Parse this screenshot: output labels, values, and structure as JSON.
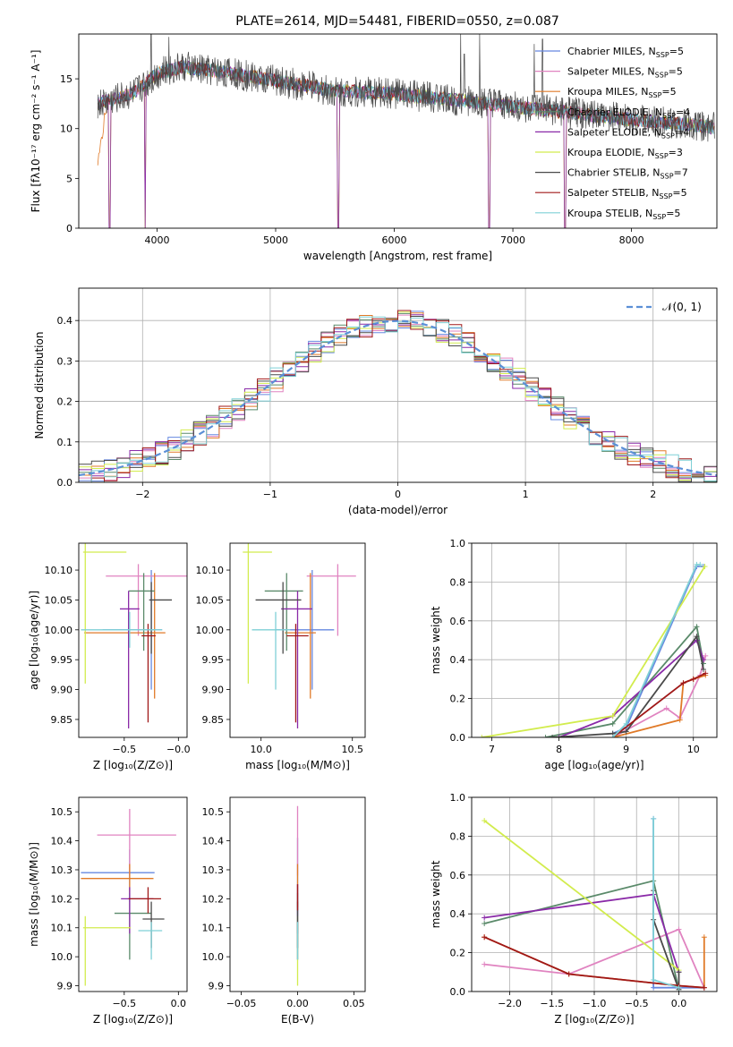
{
  "figure_title": "PLATE=2614, MJD=54481, FIBERID=0550, z=0.087",
  "colors": [
    "#6688e0",
    "#e083c0",
    "#e07a28",
    "#5a8a6a",
    "#8a2aa8",
    "#d2ec4e",
    "#4a4a4a",
    "#a01818",
    "#7fd0d6"
  ],
  "chart_data": [
    {
      "id": "spectrum",
      "type": "line",
      "xlabel": "wavelength [Angstrom, rest frame]",
      "ylabel": "Flux [fλ10⁻¹⁷ erg cm⁻² s⁻¹ A⁻¹]",
      "xlim": [
        3340,
        8720
      ],
      "ylim": [
        0,
        19.5
      ],
      "xticks": [
        "4000",
        "5000",
        "6000",
        "7000",
        "8000"
      ],
      "yticks": [
        "0",
        "5",
        "10",
        "15"
      ],
      "legend_position": "top-right",
      "series": [
        {
          "name": "Chabrier MILES, Nₛₛₚ=5",
          "label_main": "Chabrier MILES, N",
          "label_sub": "SSP",
          "label_tail": "=5"
        },
        {
          "name": "Salpeter MILES, Nₛₛₚ=5",
          "label_main": "Salpeter MILES, N",
          "label_sub": "SSP",
          "label_tail": "=5"
        },
        {
          "name": "Kroupa MILES, Nₛₛₚ=5",
          "label_main": "Kroupa MILES, N",
          "label_sub": "SSP",
          "label_tail": "=5"
        },
        {
          "name": "Chabrier ELODIE, Nₛₛₚ=4",
          "label_main": "Chabrier ELODIE, N",
          "label_sub": "SSP",
          "label_tail": "=4"
        },
        {
          "name": "Salpeter ELODIE, Nₛₛₚ=4",
          "label_main": "Salpeter ELODIE, N",
          "label_sub": "SSP",
          "label_tail": "=4"
        },
        {
          "name": "Kroupa ELODIE, Nₛₛₚ=3",
          "label_main": "Kroupa ELODIE, N",
          "label_sub": "SSP",
          "label_tail": "=3"
        },
        {
          "name": "Chabrier STELIB, Nₛₛₚ=7",
          "label_main": "Chabrier STELIB, N",
          "label_sub": "SSP",
          "label_tail": "=7"
        },
        {
          "name": "Salpeter STELIB, Nₛₛₚ=5",
          "label_main": "Salpeter STELIB, N",
          "label_sub": "SSP",
          "label_tail": "=5"
        },
        {
          "name": "Kroupa STELIB, Nₛₛₚ=5",
          "label_main": "Kroupa STELIB, N",
          "label_sub": "SSP",
          "label_tail": "=5"
        }
      ],
      "continuum": [
        [
          3500,
          12.5
        ],
        [
          3800,
          13.6
        ],
        [
          4000,
          15.5
        ],
        [
          4200,
          16.2
        ],
        [
          4500,
          15.8
        ],
        [
          5000,
          14.8
        ],
        [
          5500,
          13.8
        ],
        [
          6000,
          13.5
        ],
        [
          6500,
          12.9
        ],
        [
          7000,
          12.2
        ],
        [
          7500,
          11.6
        ],
        [
          8000,
          10.9
        ],
        [
          8500,
          10.4
        ],
        [
          8700,
          10.1
        ]
      ],
      "observed_spikes": [
        [
          3950,
          19.5
        ],
        [
          4100,
          19.2
        ],
        [
          6560,
          19.5
        ],
        [
          6590,
          17.5
        ],
        [
          6720,
          19.5
        ],
        [
          7180,
          18.5
        ],
        [
          7250,
          19.0
        ]
      ],
      "model_dips": [
        [
          3600,
          0
        ],
        [
          3900,
          0
        ],
        [
          5530,
          0
        ],
        [
          6800,
          0
        ],
        [
          7440,
          0
        ]
      ]
    },
    {
      "id": "residuals",
      "type": "histogram",
      "xlabel": "(data-model)/error",
      "ylabel": "Normed distribution",
      "xlim": [
        -2.5,
        2.5
      ],
      "ylim": [
        0,
        0.48
      ],
      "xticks": [
        "−2",
        "−1",
        "0",
        "1",
        "2"
      ],
      "yticks": [
        "0.0",
        "0.1",
        "0.2",
        "0.3",
        "0.4"
      ],
      "bin_width": 0.1,
      "reference_curve": "𝒩(0, 1)",
      "legend_position": "top-right",
      "bin_start": -2.5
    },
    {
      "id": "age_vs_Z",
      "type": "scatter",
      "xlabel": "Z [log₁₀(Z/Z⊙)]",
      "ylabel": "age  [log₁₀(age/yr)]",
      "xlim": [
        -0.92,
        0.08
      ],
      "ylim": [
        9.82,
        10.145
      ],
      "xticks": [
        "−0.5",
        "−0.0"
      ],
      "yticks": [
        "9.85",
        "9.90",
        "9.95",
        "10.00",
        "10.05",
        "10.10"
      ],
      "points": [
        {
          "x": -0.25,
          "y": 10.0,
          "xerr": [
            0.45,
            0.1
          ],
          "yerr": [
            0.1,
            0.1
          ]
        },
        {
          "x": -0.37,
          "y": 10.09,
          "xerr": [
            0.3,
            0.45
          ],
          "yerr": [
            0.1,
            0.02
          ]
        },
        {
          "x": -0.22,
          "y": 9.995,
          "xerr": [
            0.65,
            0.1
          ],
          "yerr": [
            0.11,
            0.1
          ]
        },
        {
          "x": -0.32,
          "y": 10.065,
          "xerr": [
            0.14,
            0.1
          ],
          "yerr": [
            0.1,
            0.03
          ]
        },
        {
          "x": -0.46,
          "y": 10.035,
          "xerr": [
            0.08,
            0.1
          ],
          "yerr": [
            0.2,
            0.03
          ]
        },
        {
          "x": -0.86,
          "y": 10.13,
          "xerr": [
            0.02,
            0.38
          ],
          "yerr": [
            0.22,
            0.02
          ]
        },
        {
          "x": -0.25,
          "y": 10.05,
          "xerr": [
            0.02,
            0.19
          ],
          "yerr": [
            0.09,
            0.03
          ]
        },
        {
          "x": -0.28,
          "y": 9.99,
          "xerr": [
            0.06,
            0.07
          ],
          "yerr": [
            0.145,
            0.02
          ]
        },
        {
          "x": -0.45,
          "y": 10.0,
          "xerr": [
            0.45,
            0.3
          ],
          "yerr": [
            0.03,
            0.03
          ]
        }
      ]
    },
    {
      "id": "age_vs_mass",
      "type": "scatter",
      "xlabel": "mass [log₁₀(M/M⊙)]",
      "ylabel": "",
      "xlim": [
        9.83,
        10.57
      ],
      "ylim": [
        9.82,
        10.145
      ],
      "xticks": [
        "10.0",
        "10.5"
      ],
      "yticks": [
        "9.85",
        "9.90",
        "9.95",
        "10.00",
        "10.05",
        "10.10"
      ],
      "points": [
        {
          "x": 10.28,
          "y": 10.0,
          "xerr": [
            0.2,
            0.12
          ],
          "yerr": [
            0.1,
            0.1
          ]
        },
        {
          "x": 10.42,
          "y": 10.09,
          "xerr": [
            0.17,
            0.1
          ],
          "yerr": [
            0.1,
            0.02
          ]
        },
        {
          "x": 10.27,
          "y": 9.995,
          "xerr": [
            0.14,
            0.03
          ],
          "yerr": [
            0.11,
            0.1
          ]
        },
        {
          "x": 10.14,
          "y": 10.065,
          "xerr": [
            0.12,
            0.09
          ],
          "yerr": [
            0.1,
            0.03
          ]
        },
        {
          "x": 10.2,
          "y": 10.035,
          "xerr": [
            0.09,
            0.08
          ],
          "yerr": [
            0.2,
            0.03
          ]
        },
        {
          "x": 9.93,
          "y": 10.13,
          "xerr": [
            0.03,
            0.13
          ],
          "yerr": [
            0.22,
            0.02
          ]
        },
        {
          "x": 10.12,
          "y": 10.05,
          "xerr": [
            0.15,
            0.1
          ],
          "yerr": [
            0.09,
            0.03
          ]
        },
        {
          "x": 10.19,
          "y": 9.99,
          "xerr": [
            0.05,
            0.07
          ],
          "yerr": [
            0.145,
            0.02
          ]
        },
        {
          "x": 10.08,
          "y": 10.0,
          "xerr": [
            0.13,
            0.08
          ],
          "yerr": [
            0.1,
            0.03
          ]
        }
      ]
    },
    {
      "id": "weight_vs_age",
      "type": "line",
      "xlabel": "age  [log₁₀(age/yr)]",
      "ylabel": "mass weight",
      "xlim": [
        6.7,
        10.35
      ],
      "ylim": [
        0,
        1.0
      ],
      "xticks": [
        "7",
        "8",
        "9",
        "10"
      ],
      "yticks": [
        "0.0",
        "0.2",
        "0.4",
        "0.6",
        "0.8",
        "1.0"
      ],
      "series": [
        {
          "points": [
            [
              8.8,
              0.02
            ],
            [
              9.0,
              0.05
            ],
            [
              10.05,
              0.88
            ],
            [
              10.15,
              0.88
            ]
          ]
        },
        {
          "points": [
            [
              8.8,
              0.0
            ],
            [
              9.6,
              0.15
            ],
            [
              9.8,
              0.1
            ],
            [
              10.1,
              0.32
            ],
            [
              10.18,
              0.42
            ]
          ]
        },
        {
          "points": [
            [
              8.8,
              0.0
            ],
            [
              9.8,
              0.09
            ],
            [
              9.85,
              0.28
            ],
            [
              10.0,
              0.3
            ],
            [
              10.18,
              0.32
            ]
          ]
        },
        {
          "points": [
            [
              7.8,
              0.0
            ],
            [
              8.8,
              0.07
            ],
            [
              10.05,
              0.57
            ],
            [
              10.15,
              0.38
            ]
          ]
        },
        {
          "points": [
            [
              8.0,
              0.0
            ],
            [
              8.8,
              0.11
            ],
            [
              10.05,
              0.5
            ],
            [
              10.15,
              0.4
            ]
          ]
        },
        {
          "points": [
            [
              6.85,
              0.0
            ],
            [
              8.8,
              0.11
            ],
            [
              10.17,
              0.88
            ]
          ]
        },
        {
          "points": [
            [
              7.9,
              0.0
            ],
            [
              8.8,
              0.02
            ],
            [
              9.0,
              0.03
            ],
            [
              10.05,
              0.52
            ],
            [
              10.15,
              0.35
            ]
          ]
        },
        {
          "points": [
            [
              8.8,
              0.0
            ],
            [
              9.85,
              0.28
            ],
            [
              10.0,
              0.3
            ],
            [
              10.18,
              0.33
            ]
          ]
        },
        {
          "points": [
            [
              8.8,
              0.0
            ],
            [
              9.0,
              0.07
            ],
            [
              10.05,
              0.89
            ],
            [
              10.1,
              0.89
            ]
          ]
        }
      ]
    },
    {
      "id": "mass_vs_Z",
      "type": "scatter",
      "xlabel": "Z [log₁₀(Z/Z⊙)]",
      "ylabel": "mass [log₁₀(M/M⊙)]",
      "xlim": [
        -0.92,
        0.08
      ],
      "ylim": [
        9.88,
        10.55
      ],
      "xticks": [
        "−0.5",
        "0.0"
      ],
      "yticks": [
        "9.9",
        "10.0",
        "10.1",
        "10.2",
        "10.3",
        "10.4",
        "10.5"
      ],
      "points": [
        {
          "x": -0.45,
          "y": 10.29,
          "xerr": [
            0.45,
            0.23
          ],
          "yerr": [
            0.1,
            0.08
          ]
        },
        {
          "x": -0.45,
          "y": 10.42,
          "xerr": [
            0.3,
            0.43
          ],
          "yerr": [
            0.14,
            0.09
          ]
        },
        {
          "x": -0.45,
          "y": 10.27,
          "xerr": [
            0.45,
            0.22
          ],
          "yerr": [
            0.05,
            0.05
          ]
        },
        {
          "x": -0.45,
          "y": 10.15,
          "xerr": [
            0.14,
            0.2
          ],
          "yerr": [
            0.16,
            0.07
          ]
        },
        {
          "x": -0.45,
          "y": 10.2,
          "xerr": [
            0.08,
            0.22
          ],
          "yerr": [
            0.12,
            0.04
          ]
        },
        {
          "x": -0.86,
          "y": 10.1,
          "xerr": [
            0.02,
            0.42
          ],
          "yerr": [
            0.2,
            0.04
          ]
        },
        {
          "x": -0.25,
          "y": 10.13,
          "xerr": [
            0.08,
            0.12
          ],
          "yerr": [
            0.1,
            0.06
          ]
        },
        {
          "x": -0.28,
          "y": 10.2,
          "xerr": [
            0.18,
            0.12
          ],
          "yerr": [
            0.05,
            0.04
          ]
        },
        {
          "x": -0.25,
          "y": 10.09,
          "xerr": [
            0.12,
            0.1
          ],
          "yerr": [
            0.1,
            0.03
          ]
        }
      ]
    },
    {
      "id": "mass_vs_ebv",
      "type": "scatter",
      "xlabel": "E(B-V)",
      "ylabel": "",
      "xlim": [
        -0.06,
        0.06
      ],
      "ylim": [
        9.88,
        10.55
      ],
      "xticks": [
        "−0.05",
        "0.00",
        "0.05"
      ],
      "yticks": [
        "9.9",
        "10.0",
        "10.1",
        "10.2",
        "10.3",
        "10.4",
        "10.5"
      ],
      "points": [
        {
          "x": 0.0,
          "y": 10.29,
          "yerr": [
            0.3,
            0.12
          ]
        },
        {
          "x": 0.0,
          "y": 10.42,
          "yerr": [
            0.14,
            0.1
          ]
        },
        {
          "x": 0.0,
          "y": 10.27,
          "yerr": [
            0.1,
            0.05
          ]
        },
        {
          "x": 0.0,
          "y": 10.15,
          "yerr": [
            0.16,
            0.07
          ]
        },
        {
          "x": 0.0,
          "y": 10.2,
          "yerr": [
            0.12,
            0.05
          ]
        },
        {
          "x": 0.0,
          "y": 10.1,
          "yerr": [
            0.2,
            0.04
          ]
        },
        {
          "x": 0.0,
          "y": 10.13,
          "yerr": [
            0.1,
            0.06
          ]
        },
        {
          "x": 0.0,
          "y": 10.2,
          "yerr": [
            0.04,
            0.05
          ]
        },
        {
          "x": 0.0,
          "y": 10.09,
          "yerr": [
            0.1,
            0.03
          ]
        }
      ]
    },
    {
      "id": "weight_vs_Z",
      "type": "line",
      "xlabel": "Z [log₁₀(Z/Z⊙)]",
      "ylabel": "mass weight",
      "xlim": [
        -2.45,
        0.45
      ],
      "ylim": [
        0,
        1.0
      ],
      "xticks": [
        "−2.0",
        "−1.5",
        "−1.0",
        "−0.5",
        "0.0"
      ],
      "yticks": [
        "0.0",
        "0.2",
        "0.4",
        "0.6",
        "0.8",
        "1.0"
      ],
      "series": [
        {
          "points": [
            [
              -0.3,
              0.89
            ],
            [
              -0.3,
              0.02
            ],
            [
              0.3,
              0.02
            ]
          ]
        },
        {
          "points": [
            [
              -2.3,
              0.14
            ],
            [
              -1.3,
              0.09
            ],
            [
              0.0,
              0.32
            ],
            [
              0.3,
              0.02
            ]
          ]
        },
        {
          "points": [
            [
              -2.3,
              0.28
            ],
            [
              -1.3,
              0.09
            ],
            [
              0.0,
              0.03
            ],
            [
              0.3,
              0.02
            ],
            [
              0.3,
              0.28
            ]
          ]
        },
        {
          "points": [
            [
              -2.3,
              0.35
            ],
            [
              -0.3,
              0.57
            ],
            [
              0.0,
              0.01
            ]
          ]
        },
        {
          "points": [
            [
              -2.3,
              0.38
            ],
            [
              -0.3,
              0.5
            ],
            [
              0.0,
              0.1
            ]
          ]
        },
        {
          "points": [
            [
              -2.3,
              0.88
            ],
            [
              0.0,
              0.11
            ]
          ]
        },
        {
          "points": [
            [
              -0.3,
              0.52
            ],
            [
              -0.3,
              0.37
            ],
            [
              0.0,
              0.01
            ],
            [
              0.0,
              0.1
            ]
          ]
        },
        {
          "points": [
            [
              -2.3,
              0.28
            ],
            [
              -1.3,
              0.09
            ],
            [
              0.0,
              0.03
            ],
            [
              0.3,
              0.02
            ]
          ]
        },
        {
          "points": [
            [
              -0.3,
              0.89
            ],
            [
              -0.3,
              0.06
            ],
            [
              0.0,
              0.02
            ]
          ]
        }
      ]
    }
  ]
}
